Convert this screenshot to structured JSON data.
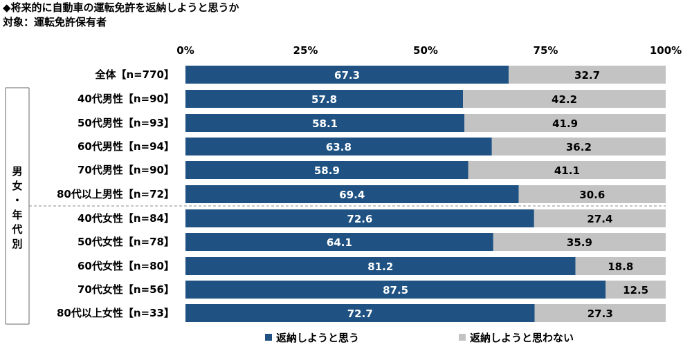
{
  "title": "◆将来的に自動車の運転免許を返納しようと思うか",
  "subtitle": "対象：運転免許保有者",
  "group_label": "男女・年代別",
  "chart_data": {
    "type": "bar",
    "orientation": "horizontal",
    "stacked": true,
    "xlim": [
      0,
      100
    ],
    "ticks": [
      "0%",
      "25%",
      "50%",
      "75%",
      "100%"
    ],
    "categories": [
      "全体【n=770】",
      "40代男性【n=90】",
      "50代男性【n=93】",
      "60代男性【n=94】",
      "70代男性【n=90】",
      "80代以上男性【n=72】",
      "40代女性【n=84】",
      "50代女性【n=78】",
      "60代女性【n=80】",
      "70代女性【n=56】",
      "80代以上女性【n=33】"
    ],
    "series": [
      {
        "name": "返納しようと思う",
        "color": "#1f5282",
        "values": [
          67.3,
          57.8,
          58.1,
          63.8,
          58.9,
          69.4,
          72.6,
          64.1,
          81.2,
          87.5,
          72.7
        ]
      },
      {
        "name": "返納しようと思わない",
        "color": "#c3c3c3",
        "values": [
          32.7,
          42.2,
          41.9,
          36.2,
          41.1,
          30.6,
          27.4,
          35.9,
          18.8,
          12.5,
          27.3
        ]
      }
    ],
    "grid": false,
    "legend_position": "bottom"
  }
}
